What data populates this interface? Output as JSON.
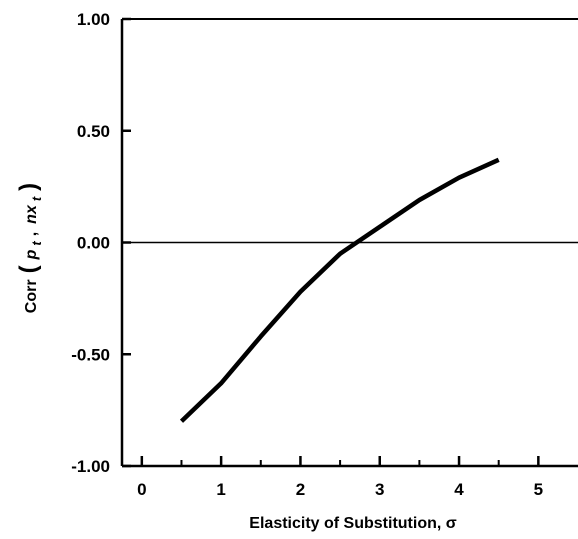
{
  "chart_data": {
    "type": "line",
    "title": "",
    "xlabel": "Elasticity of Substitution, σ",
    "ylabel": {
      "prefix": "Corr",
      "open": "(",
      "var1": "p",
      "sub1": "t",
      "comma": ",",
      "var2": "nx",
      "sub2": "t",
      "close": ")"
    },
    "xlim": [
      -0.25,
      5.5
    ],
    "ylim": [
      -1.0,
      1.0
    ],
    "x_ticks": [
      0,
      1,
      2,
      3,
      4,
      5
    ],
    "x_tick_labels": [
      "0",
      "1",
      "2",
      "3",
      "4",
      "5"
    ],
    "x_minor_ticks": [
      0.5,
      1.5,
      2.5,
      3.5,
      4.5
    ],
    "y_ticks": [
      -1.0,
      -0.5,
      0.0,
      0.5,
      1.0
    ],
    "y_tick_labels": [
      "-1.00",
      "-0.50",
      "0.00",
      "0.50",
      "1.00"
    ],
    "reference_lines": [
      {
        "axis": "y",
        "value": 0.0
      }
    ],
    "grid": false,
    "series": [
      {
        "x": [
          0.5,
          1.0,
          1.5,
          2.0,
          2.5,
          3.0,
          3.5,
          4.0,
          4.5
        ],
        "y": [
          -0.8,
          -0.63,
          -0.42,
          -0.22,
          -0.05,
          0.07,
          0.19,
          0.29,
          0.37
        ]
      }
    ]
  }
}
